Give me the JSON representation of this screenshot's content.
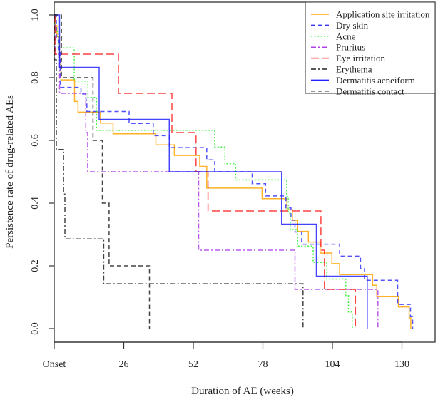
{
  "chart_data": {
    "type": "line",
    "subtype": "kaplan-meier step",
    "title": "",
    "xlabel": "Duration of AE (weeks)",
    "ylabel": "Persistence rate of drug-related AEs",
    "xlim": [
      0,
      142
    ],
    "ylim": [
      0,
      1
    ],
    "x_ticks": [
      0,
      26,
      52,
      78,
      104,
      130
    ],
    "x_tick_labels": [
      "Onset",
      "26",
      "52",
      "78",
      "104",
      "130"
    ],
    "y_ticks": [
      0,
      0.2,
      0.4,
      0.6,
      0.8,
      1.0
    ],
    "y_tick_labels": [
      "0.0",
      "0.2",
      "0.4",
      "0.6",
      "0.8",
      "1.0"
    ],
    "grid": false,
    "legend_position": "top-right",
    "series": [
      {
        "name": "Application site irritation",
        "color": "#FFA500",
        "dash": "solid",
        "steps": [
          [
            0,
            1
          ],
          [
            0.5,
            0.966
          ],
          [
            1,
            0.931
          ],
          [
            2,
            0.862
          ],
          [
            2.5,
            0.793
          ],
          [
            7.6,
            0.724
          ],
          [
            8.9,
            0.69
          ],
          [
            17.3,
            0.655
          ],
          [
            22,
            0.621
          ],
          [
            38,
            0.586
          ],
          [
            44.9,
            0.552
          ],
          [
            54.4,
            0.517
          ],
          [
            57,
            0.448
          ],
          [
            77.7,
            0.414
          ],
          [
            87,
            0.379
          ],
          [
            89,
            0.345
          ],
          [
            91,
            0.31
          ],
          [
            95,
            0.276
          ],
          [
            99.4,
            0.241
          ],
          [
            103.8,
            0.207
          ],
          [
            106.7,
            0.172
          ],
          [
            119,
            0.138
          ],
          [
            120.6,
            0.103
          ],
          [
            128.7,
            0.069
          ],
          [
            132.7,
            0.034
          ],
          [
            133.3,
            0
          ]
        ]
      },
      {
        "name": "Dry skin",
        "color": "#3333FF",
        "dash": "dashed",
        "steps": [
          [
            0,
            1
          ],
          [
            0.8,
            0.92
          ],
          [
            1.8,
            0.88
          ],
          [
            2.2,
            0.769
          ],
          [
            10,
            0.748
          ],
          [
            11.9,
            0.727
          ],
          [
            12.2,
            0.692
          ],
          [
            28,
            0.654
          ],
          [
            37,
            0.615
          ],
          [
            43,
            0.577
          ],
          [
            57,
            0.538
          ],
          [
            60,
            0.5
          ],
          [
            74,
            0.462
          ],
          [
            79,
            0.423
          ],
          [
            86.6,
            0.385
          ],
          [
            88.5,
            0.346
          ],
          [
            90,
            0.308
          ],
          [
            92.5,
            0.269
          ],
          [
            106.7,
            0.231
          ],
          [
            114.5,
            0.192
          ],
          [
            116,
            0.154
          ],
          [
            128.4,
            0.077
          ],
          [
            133.2,
            0.038
          ],
          [
            134,
            0
          ]
        ]
      },
      {
        "name": "Acne",
        "color": "#22EE22",
        "dash": "dotted",
        "steps": [
          [
            0,
            1
          ],
          [
            0.5,
            0.947
          ],
          [
            1.5,
            0.895
          ],
          [
            7.5,
            0.789
          ],
          [
            12.6,
            0.737
          ],
          [
            15.8,
            0.632
          ],
          [
            60,
            0.579
          ],
          [
            63.8,
            0.526
          ],
          [
            67.8,
            0.474
          ],
          [
            86.9,
            0.421
          ],
          [
            87.5,
            0.368
          ],
          [
            88.2,
            0.316
          ],
          [
            91,
            0.263
          ],
          [
            96.8,
            0.211
          ],
          [
            101.9,
            0.158
          ],
          [
            109,
            0.105
          ],
          [
            110,
            0.053
          ],
          [
            111.4,
            0
          ]
        ]
      },
      {
        "name": "Pruritus",
        "color": "#B040E8",
        "dash": "dashdot",
        "steps": [
          [
            0,
            1
          ],
          [
            0.5,
            0.875
          ],
          [
            2,
            0.75
          ],
          [
            11.8,
            0.625
          ],
          [
            12.5,
            0.5
          ],
          [
            54,
            0.25
          ],
          [
            90,
            0.125
          ],
          [
            121,
            0
          ]
        ]
      },
      {
        "name": "Eye irritation",
        "color": "#FF2222",
        "dash": "longdash",
        "steps": [
          [
            0,
            1
          ],
          [
            0.3,
            0.875
          ],
          [
            24,
            0.75
          ],
          [
            44,
            0.625
          ],
          [
            53,
            0.5
          ],
          [
            57.5,
            0.375
          ],
          [
            99.7,
            0.25
          ],
          [
            101,
            0.125
          ],
          [
            112.6,
            0
          ]
        ]
      },
      {
        "name": "Erythema",
        "color": "#222222",
        "dash": "dashdot",
        "steps": [
          [
            0,
            1
          ],
          [
            0.1,
            0.857
          ],
          [
            0.8,
            0.571
          ],
          [
            3.5,
            0.429
          ],
          [
            4,
            0.286
          ],
          [
            18.5,
            0.143
          ],
          [
            93,
            0
          ]
        ]
      },
      {
        "name": "Dermatitis acneiform",
        "color": "#2222FF",
        "dash": "solid",
        "steps": [
          [
            0,
            1
          ],
          [
            2,
            0.833
          ],
          [
            16.8,
            0.667
          ],
          [
            43,
            0.5
          ],
          [
            85,
            0.333
          ],
          [
            98,
            0.167
          ],
          [
            117,
            0
          ]
        ]
      },
      {
        "name": "Dermatitis contact",
        "color": "#222222",
        "dash": "dashed",
        "steps": [
          [
            0,
            1
          ],
          [
            2.7,
            0.8
          ],
          [
            14.5,
            0.6
          ],
          [
            18,
            0.4
          ],
          [
            20.5,
            0.2
          ],
          [
            35.6,
            0
          ]
        ]
      }
    ]
  }
}
